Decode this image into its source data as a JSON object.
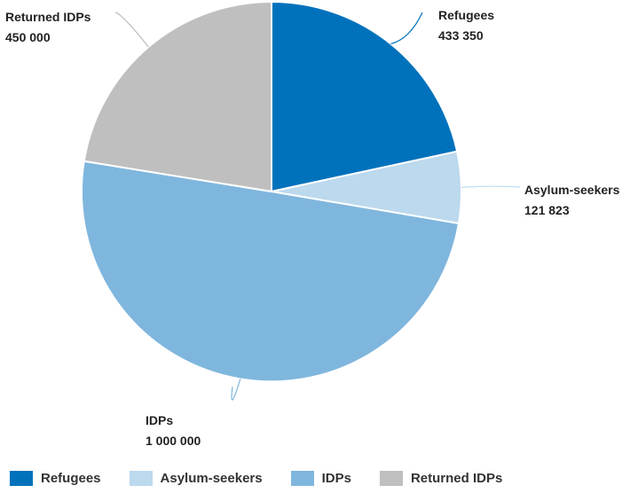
{
  "chart_data": {
    "type": "pie",
    "title": "",
    "slices": [
      {
        "label": "Refugees",
        "value": 433350,
        "value_text": "433 350",
        "color": "#0072bc"
      },
      {
        "label": "Asylum-seekers",
        "value": 121823,
        "value_text": "121 823",
        "color": "#bcd9ee"
      },
      {
        "label": "IDPs",
        "value": 1000000,
        "value_text": "1 000 000",
        "color": "#7fb6dd"
      },
      {
        "label": "Returned IDPs",
        "value": 450000,
        "value_text": "450 000",
        "color": "#bfbfbf"
      }
    ],
    "start_angle_deg": 0,
    "direction": "clockwise",
    "data_labels": true,
    "legend_position": "bottom"
  }
}
